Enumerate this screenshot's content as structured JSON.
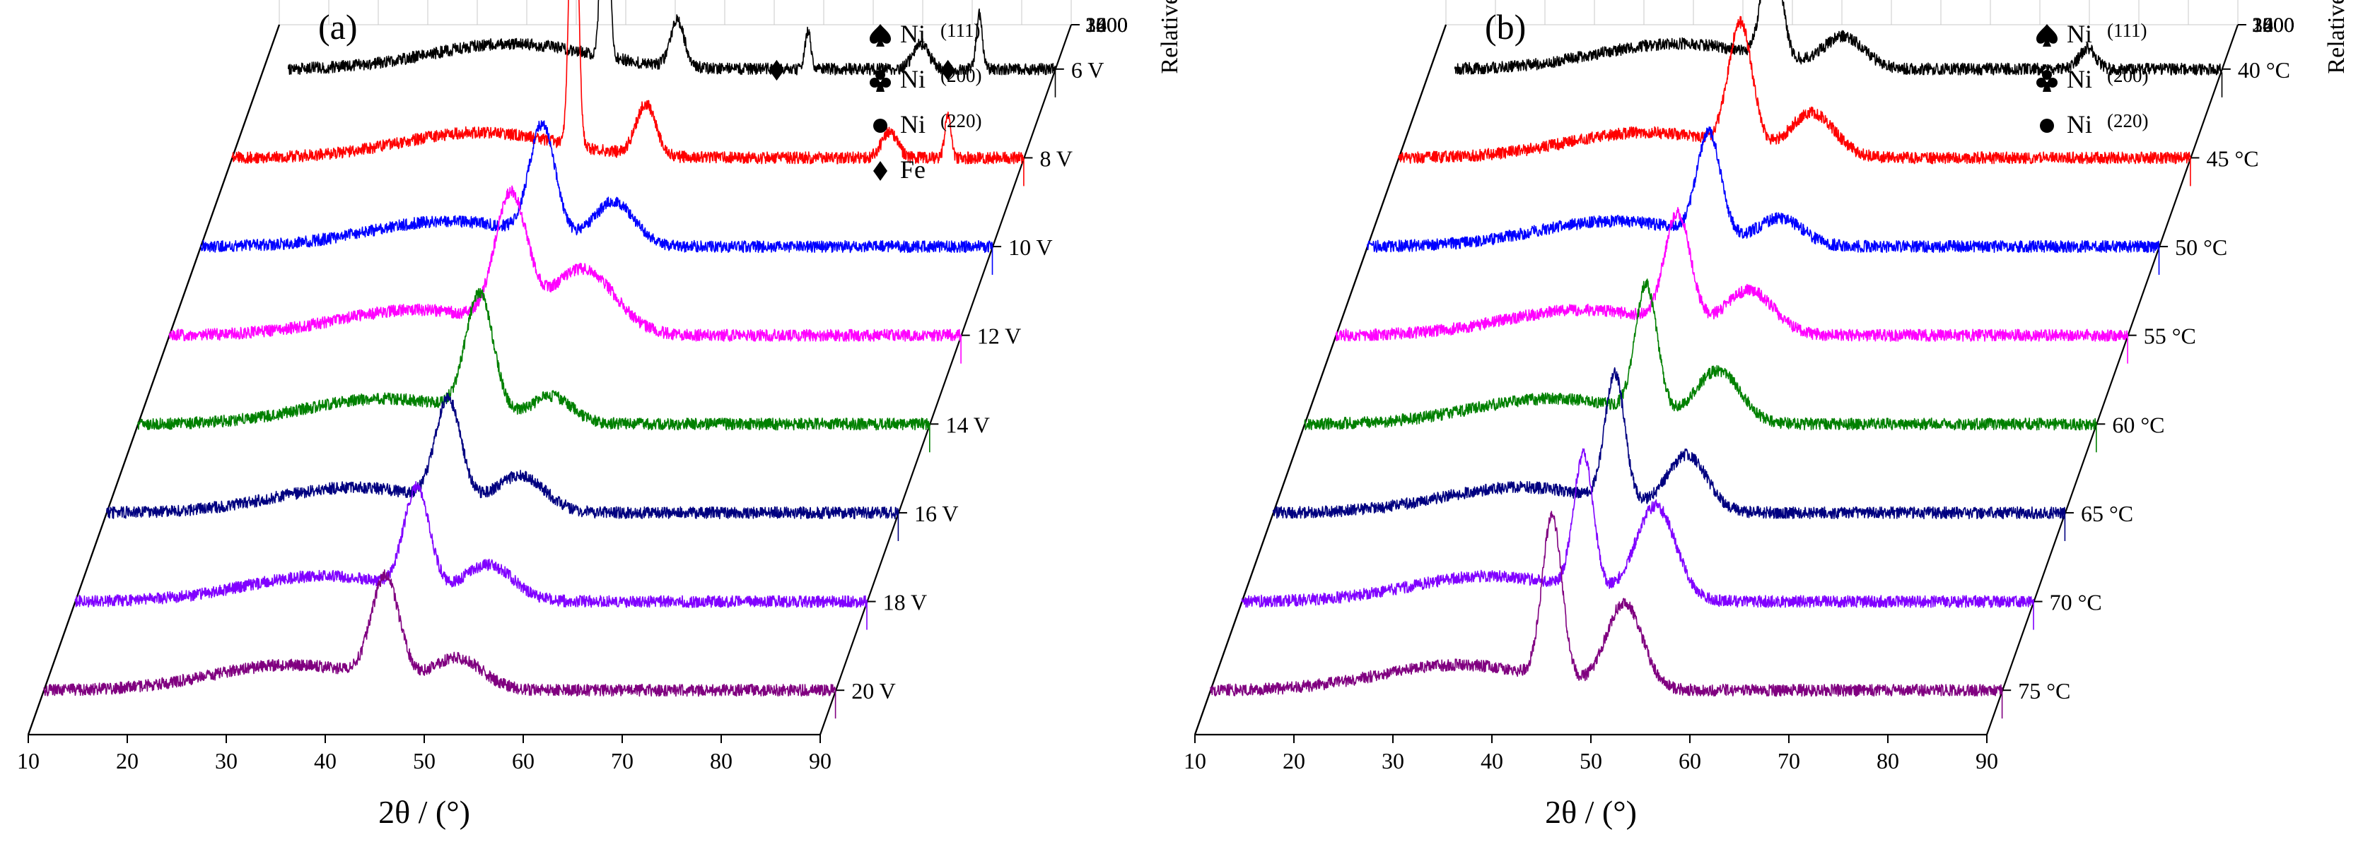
{
  "chart_data": [
    {
      "type": "line",
      "panel_label": "(a)",
      "xlabel": "2θ / (°)",
      "zlabel": "Relative intensity (a.u.)",
      "x_ticks": [
        10,
        20,
        30,
        40,
        50,
        60,
        70,
        80,
        90
      ],
      "xlim": [
        10,
        90
      ],
      "z_ticks": [
        1200,
        1800,
        2400,
        3000,
        3600
      ],
      "series_axis_labels": [
        "6 V",
        "8 V",
        "10 V",
        "12 V",
        "14 V",
        "16 V",
        "18 V",
        "20 V"
      ],
      "legend": [
        {
          "symbol": "spade",
          "label": "Ni",
          "sup": "(111)"
        },
        {
          "symbol": "club",
          "label": "Ni",
          "sup": "(200)"
        },
        {
          "symbol": "dot",
          "label": "Ni",
          "sup": "(220)"
        },
        {
          "symbol": "diamond",
          "label": "Fe",
          "sup": ""
        }
      ],
      "markers": [
        {
          "symbol": "spade",
          "x": 44.5,
          "series": 0,
          "height": 0.95
        },
        {
          "symbol": "club",
          "x": 51.8,
          "series": 0,
          "height": 0.3
        },
        {
          "symbol": "diamond",
          "x": 65.0,
          "series": 0,
          "height": 0.28
        },
        {
          "symbol": "dot",
          "x": 76.4,
          "series": 0,
          "height": 0.28
        },
        {
          "symbol": "diamond",
          "x": 82.3,
          "series": 0,
          "height": 0.4
        },
        {
          "symbol": "diamond",
          "x": 65.0,
          "series": 1,
          "height": 0.2
        },
        {
          "symbol": "diamond",
          "x": 82.3,
          "series": 1,
          "height": 0.2
        }
      ],
      "series": [
        {
          "label": "6 V",
          "color": "#000000",
          "baseline": 1500,
          "peaks": [
            [
              44.5,
              780,
              0.35
            ],
            [
              51.8,
              110,
              0.7
            ],
            [
              65.0,
              90,
              0.3
            ],
            [
              76.4,
              60,
              0.8
            ],
            [
              82.3,
              130,
              0.3
            ]
          ]
        },
        {
          "label": "8 V",
          "color": "#ff0000",
          "baseline": 1500,
          "peaks": [
            [
              44.5,
              820,
              0.4
            ],
            [
              51.8,
              120,
              1.0
            ],
            [
              76.4,
              60,
              0.8
            ],
            [
              82.3,
              100,
              0.3
            ]
          ]
        },
        {
          "label": "10 V",
          "color": "#0000ff",
          "baseline": 1500,
          "peaks": [
            [
              44.5,
              260,
              1.3
            ],
            [
              51.8,
              100,
              2.0
            ]
          ]
        },
        {
          "label": "12 V",
          "color": "#ff00ff",
          "baseline": 1500,
          "peaks": [
            [
              44.5,
              300,
              1.6
            ],
            [
              51.8,
              150,
              3.2
            ]
          ]
        },
        {
          "label": "14 V",
          "color": "#008000",
          "baseline": 1500,
          "peaks": [
            [
              44.5,
              280,
              1.4
            ],
            [
              51.8,
              60,
              2.0
            ]
          ]
        },
        {
          "label": "16 V",
          "color": "#000080",
          "baseline": 1500,
          "peaks": [
            [
              44.5,
              240,
              1.3
            ],
            [
              51.8,
              80,
              2.5
            ]
          ]
        },
        {
          "label": "18 V",
          "color": "#8000ff",
          "baseline": 1500,
          "peaks": [
            [
              44.5,
              240,
              1.3
            ],
            [
              51.8,
              80,
              2.5
            ]
          ]
        },
        {
          "label": "20 V",
          "color": "#800080",
          "baseline": 1500,
          "peaks": [
            [
              44.5,
              240,
              1.4
            ],
            [
              51.8,
              70,
              2.5
            ]
          ]
        }
      ]
    },
    {
      "type": "line",
      "panel_label": "(b)",
      "xlabel": "2θ / (°)",
      "zlabel": "Relative intensity (a.u.)",
      "x_ticks": [
        10,
        20,
        30,
        40,
        50,
        60,
        70,
        80,
        90
      ],
      "xlim": [
        10,
        90
      ],
      "z_ticks": [
        1200,
        1800,
        2400,
        3000,
        3600
      ],
      "series_axis_labels": [
        "40 °C",
        "45 °C",
        "50 °C",
        "55 °C",
        "60 °C",
        "65 °C",
        "70 °C",
        "75 °C"
      ],
      "legend": [
        {
          "symbol": "spade",
          "label": "Ni",
          "sup": "(111)"
        },
        {
          "symbol": "club",
          "label": "Ni",
          "sup": "(200)"
        },
        {
          "symbol": "dot",
          "label": "Ni",
          "sup": "(220)"
        }
      ],
      "markers": [
        {
          "symbol": "spade",
          "x": 44.5,
          "series": 0,
          "height": 0.55
        },
        {
          "symbol": "club",
          "x": 51.8,
          "series": 0,
          "height": 0.25
        },
        {
          "symbol": "dot",
          "x": 76.4,
          "series": 0,
          "height": 0.22
        }
      ],
      "series": [
        {
          "label": "40 °C",
          "color": "#000000",
          "baseline": 1500,
          "peaks": [
            [
              44.5,
              300,
              0.9
            ],
            [
              51.8,
              70,
              2.0
            ],
            [
              76.4,
              50,
              0.8
            ]
          ]
        },
        {
          "label": "45 °C",
          "color": "#ff0000",
          "baseline": 1500,
          "peaks": [
            [
              44.5,
              290,
              1.2
            ],
            [
              51.8,
              100,
              2.2
            ]
          ]
        },
        {
          "label": "50 °C",
          "color": "#0000ff",
          "baseline": 1500,
          "peaks": [
            [
              44.5,
              240,
              1.2
            ],
            [
              51.8,
              60,
              2.2
            ]
          ]
        },
        {
          "label": "55 °C",
          "color": "#ff00ff",
          "baseline": 1500,
          "peaks": [
            [
              44.5,
              260,
              1.3
            ],
            [
              51.8,
              100,
              2.4
            ]
          ]
        },
        {
          "label": "60 °C",
          "color": "#008000",
          "baseline": 1500,
          "peaks": [
            [
              44.5,
              300,
              1.1
            ],
            [
              51.8,
              120,
              2.2
            ]
          ]
        },
        {
          "label": "65 °C",
          "color": "#000080",
          "baseline": 1500,
          "peaks": [
            [
              44.5,
              300,
              1.0
            ],
            [
              51.8,
              130,
              2.0
            ]
          ]
        },
        {
          "label": "70 °C",
          "color": "#8000ff",
          "baseline": 1500,
          "peaks": [
            [
              44.5,
              320,
              1.0
            ],
            [
              51.8,
              220,
              2.0
            ]
          ]
        },
        {
          "label": "75 °C",
          "color": "#800080",
          "baseline": 1500,
          "peaks": [
            [
              44.5,
              380,
              1.0
            ],
            [
              51.8,
              200,
              1.8
            ]
          ]
        }
      ]
    }
  ]
}
